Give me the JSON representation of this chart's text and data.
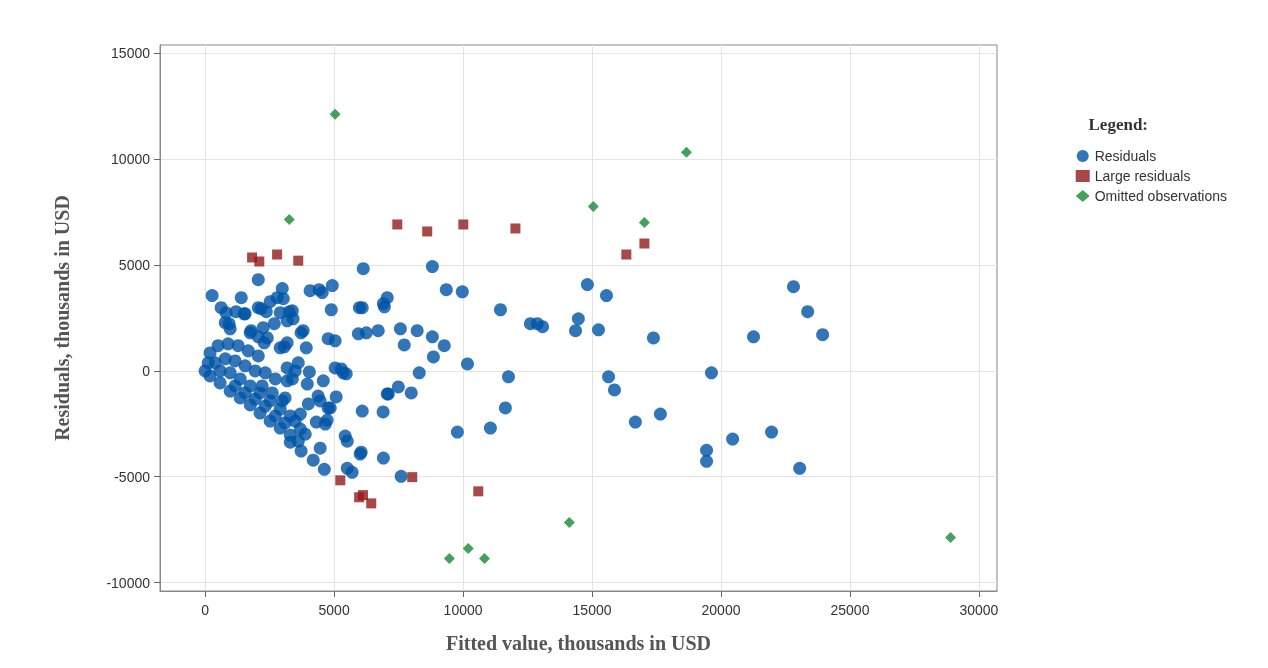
{
  "chart_data": {
    "type": "scatter",
    "xlabel": "Fitted value, thousands in USD",
    "ylabel": "Residuals, thousands in USD",
    "legend_title": "Legend:",
    "legend": "right",
    "grid": true,
    "xlim": [
      -1750,
      30700
    ],
    "xticks": [
      0,
      5000,
      10000,
      15000,
      20000,
      25000,
      30000
    ],
    "ylim": [
      -10400,
      15400
    ],
    "yticks": [
      -10000,
      -5000,
      0,
      5000,
      10000,
      15000
    ],
    "series": [
      {
        "name": "Residuals",
        "color": "#0054a6",
        "marker": "circle",
        "x": [
          270,
          1400,
          2990,
          3030,
          2790,
          2170,
          1510,
          930,
          810,
          1200,
          2060,
          2370,
          2520,
          3260,
          3410,
          2680,
          1780,
          2250,
          2060,
          2290,
          2910,
          3720,
          3920,
          3070,
          4070,
          4420,
          4930,
          4890,
          6130,
          5040,
          5280,
          5470,
          5980,
          5940,
          6250,
          6710,
          7060,
          6950,
          8810,
          9350,
          9970,
          9270,
          10170,
          11450,
          12610,
          12880,
          13080,
          14470,
          14360,
          14820,
          15560,
          15250,
          17380,
          7570,
          8220,
          8810,
          7720,
          8850,
          8300,
          7490,
          7100,
          7990,
          6900,
          6910,
          7600,
          11760,
          11640,
          11060,
          9780,
          15640,
          15870,
          16680,
          17650,
          22810,
          23360,
          23940,
          21260,
          19630,
          20450,
          21960,
          19440,
          19440,
          23050,
          3300,
          3720,
          4460,
          4190,
          4620,
          6050,
          5510,
          5700,
          5510,
          5430,
          4730,
          4850,
          4460,
          4040,
          4580,
          3960,
          3180,
          3490,
          3100,
          4310,
          3880,
          3610,
          5080,
          620,
          2060,
          1550,
          2910,
          3380,
          3180,
          4540,
          6090,
          6910,
          780,
          970,
          1750,
          2410,
          3180,
          3800,
          4770,
          3610,
          3180,
          3380,
          5040,
          5350,
          4380,
          4770,
          4000,
          3690,
          4660,
          6090,
          6010,
          7060,
          190,
          580,
          970,
          1360,
          1750,
          2130,
          2520,
          2910,
          3300,
          190,
          500,
          890,
          1280,
          1670,
          2060,
          390,
          780,
          1160,
          1550,
          1940,
          2330,
          2720,
          580,
          970,
          1360,
          1750,
          2130,
          2520,
          2910,
          3300,
          0,
          120,
          1160,
          1550,
          1940,
          2330,
          2720,
          3100,
          2210,
          2600,
          2990,
          3490,
          3690
        ],
        "values": [
          3560,
          3460,
          3890,
          3410,
          3460,
          2940,
          2700,
          2230,
          2750,
          2800,
          4310,
          2800,
          3270,
          2800,
          2460,
          2230,
          1900,
          2040,
          1610,
          1330,
          1090,
          1800,
          1090,
          1140,
          3790,
          3840,
          4030,
          2890,
          4830,
          1420,
          90,
          -140,
          2990,
          1750,
          1800,
          1900,
          3460,
          3030,
          4930,
          3840,
          3740,
          1190,
          330,
          2890,
          2230,
          2230,
          2090,
          2460,
          1900,
          4080,
          3560,
          1940,
          1560,
          1990,
          1900,
          1610,
          1230,
          660,
          -90,
          -760,
          -1090,
          -1040,
          -1940,
          -4120,
          -4980,
          -280,
          -1750,
          -2700,
          -2890,
          -280,
          -900,
          -2420,
          -2040,
          3980,
          2800,
          1710,
          1610,
          -90,
          -3220,
          -2890,
          -3750,
          -4270,
          -4600,
          -3370,
          -3790,
          -3650,
          -4220,
          -4650,
          -3840,
          -4600,
          -4790,
          -3320,
          -3080,
          -2320,
          -1750,
          -1420,
          -50,
          -470,
          -620,
          -470,
          0,
          -1280,
          -2420,
          -2990,
          -3320,
          -1230,
          2990,
          2990,
          2700,
          2750,
          2840,
          2370,
          3700,
          2990,
          3180,
          2280,
          1990,
          1800,
          1560,
          1330,
          1900,
          1520,
          380,
          140,
          -380,
          140,
          -90,
          -1190,
          -1750,
          -1560,
          -2040,
          -2510,
          -1900,
          -3930,
          -1090,
          -240,
          -570,
          -950,
          -1280,
          -1610,
          -1990,
          -2370,
          -2700,
          -3030,
          850,
          1190,
          1280,
          1190,
          950,
          710,
          380,
          570,
          470,
          240,
          0,
          -90,
          -380,
          0,
          -90,
          -380,
          -710,
          -1040,
          -1420,
          -1800,
          -2130,
          0,
          380,
          -710,
          -1040,
          -1330,
          -1660,
          -2130,
          -2460,
          -710,
          -1040,
          -1420,
          -2370,
          -2750
        ]
      },
      {
        "name": "Large residuals",
        "color": "#921a1a",
        "marker": "square",
        "x": [
          1820,
          2100,
          2790,
          3610,
          7450,
          8610,
          10010,
          12030,
          16330,
          17030,
          5240,
          5970,
          6120,
          6440,
          8030,
          10590
        ],
        "values": [
          5360,
          5170,
          5500,
          5210,
          6920,
          6590,
          6920,
          6730,
          5500,
          6020,
          -5170,
          -5970,
          -5870,
          -6260,
          -5020,
          -5690
        ]
      },
      {
        "name": "Omitted observations",
        "color": "#158a32",
        "marker": "diamond",
        "x": [
          5040,
          18660,
          3260,
          15050,
          17030,
          14120,
          9470,
          10200,
          10830,
          28900
        ],
        "values": [
          12130,
          10330,
          7160,
          7770,
          7010,
          -7160,
          -8860,
          -8390,
          -8860,
          -7870
        ]
      }
    ]
  }
}
